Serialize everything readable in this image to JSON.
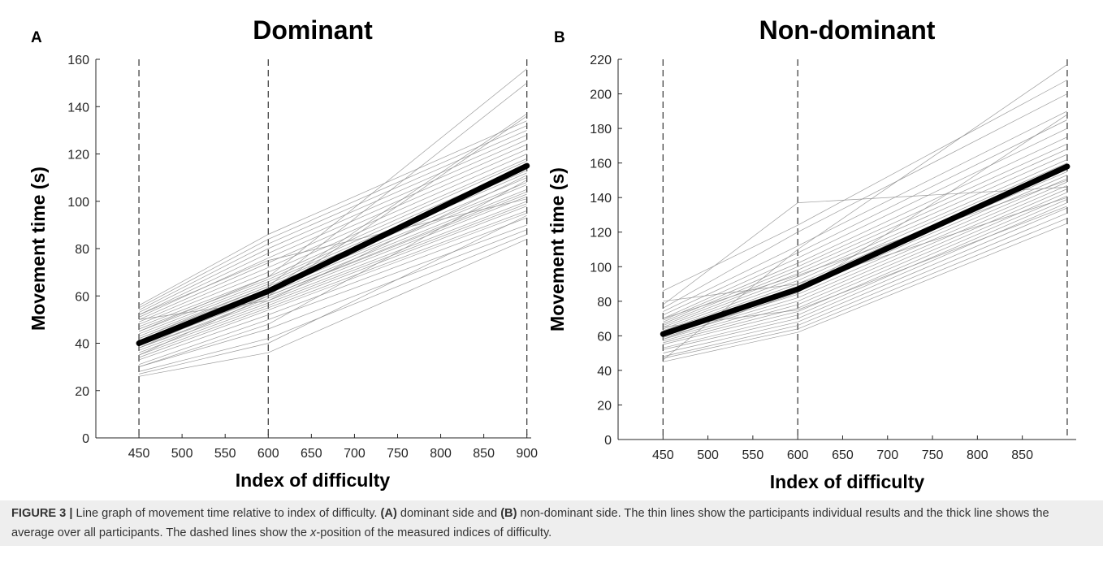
{
  "chart_data": [
    {
      "type": "line",
      "panel_label": "A",
      "title": "Dominant",
      "xlabel": "Index of difficulty",
      "ylabel": "Movement time (s)",
      "xlim": [
        400,
        905
      ],
      "ylim": [
        0,
        160
      ],
      "xticks": [
        450,
        500,
        550,
        600,
        650,
        700,
        750,
        800,
        850,
        900
      ],
      "yticks": [
        0,
        20,
        40,
        60,
        80,
        100,
        120,
        140,
        160
      ],
      "dashed_x": [
        450,
        600,
        900
      ],
      "x": [
        450,
        600,
        900
      ],
      "series": [
        {
          "role": "mean",
          "values": [
            40,
            62,
            115
          ]
        },
        {
          "values": [
            26,
            36,
            84
          ]
        },
        {
          "values": [
            28,
            42,
            86
          ]
        },
        {
          "values": [
            30,
            46,
            88
          ]
        },
        {
          "values": [
            31,
            50,
            90
          ]
        },
        {
          "values": [
            33,
            52,
            93
          ]
        },
        {
          "values": [
            34,
            54,
            95
          ]
        },
        {
          "values": [
            35,
            55,
            96
          ]
        },
        {
          "values": [
            36,
            56,
            98
          ]
        },
        {
          "values": [
            37,
            57,
            99
          ]
        },
        {
          "values": [
            38,
            58,
            100
          ]
        },
        {
          "values": [
            38,
            59,
            102
          ]
        },
        {
          "values": [
            39,
            60,
            103
          ]
        },
        {
          "values": [
            40,
            60,
            104
          ]
        },
        {
          "values": [
            40,
            61,
            105
          ]
        },
        {
          "values": [
            41,
            62,
            107
          ]
        },
        {
          "values": [
            42,
            63,
            108
          ]
        },
        {
          "values": [
            43,
            64,
            110
          ]
        },
        {
          "values": [
            44,
            65,
            112
          ]
        },
        {
          "values": [
            45,
            66,
            113
          ]
        },
        {
          "values": [
            46,
            67,
            115
          ]
        },
        {
          "values": [
            47,
            68,
            117
          ]
        },
        {
          "values": [
            48,
            70,
            118
          ]
        },
        {
          "values": [
            49,
            72,
            120
          ]
        },
        {
          "values": [
            50,
            74,
            122
          ]
        },
        {
          "values": [
            51,
            76,
            124
          ]
        },
        {
          "values": [
            52,
            78,
            126
          ]
        },
        {
          "values": [
            53,
            80,
            128
          ]
        },
        {
          "values": [
            54,
            82,
            130
          ]
        },
        {
          "values": [
            55,
            84,
            132
          ]
        },
        {
          "values": [
            56,
            86,
            134
          ]
        },
        {
          "values": [
            35,
            60,
            136
          ]
        },
        {
          "values": [
            38,
            62,
            137
          ]
        },
        {
          "values": [
            42,
            64,
            150
          ]
        },
        {
          "values": [
            45,
            68,
            156
          ]
        },
        {
          "values": [
            30,
            48,
            109
          ]
        },
        {
          "values": [
            50,
            58,
            111
          ]
        },
        {
          "values": [
            52,
            75,
            101
          ]
        },
        {
          "values": [
            27,
            40,
            94
          ]
        }
      ]
    },
    {
      "type": "line",
      "panel_label": "B",
      "title": "Non-dominant",
      "xlabel": "Index of difficulty",
      "ylabel": "Movement time (s)",
      "xlim": [
        400,
        910
      ],
      "ylim": [
        0,
        220
      ],
      "xticks": [
        450,
        500,
        550,
        600,
        650,
        700,
        750,
        800,
        850
      ],
      "yticks": [
        0,
        20,
        40,
        60,
        80,
        100,
        120,
        140,
        160,
        180,
        200,
        220
      ],
      "dashed_x": [
        450,
        600,
        900
      ],
      "x": [
        450,
        600,
        900
      ],
      "series": [
        {
          "role": "mean",
          "values": [
            61,
            87,
            158
          ]
        },
        {
          "values": [
            45,
            62,
            125
          ]
        },
        {
          "values": [
            47,
            64,
            128
          ]
        },
        {
          "values": [
            48,
            66,
            131
          ]
        },
        {
          "values": [
            50,
            68,
            134
          ]
        },
        {
          "values": [
            52,
            70,
            137
          ]
        },
        {
          "values": [
            53,
            72,
            139
          ]
        },
        {
          "values": [
            55,
            74,
            141
          ]
        },
        {
          "values": [
            56,
            76,
            143
          ]
        },
        {
          "values": [
            57,
            78,
            145
          ]
        },
        {
          "values": [
            58,
            80,
            147
          ]
        },
        {
          "values": [
            59,
            82,
            149
          ]
        },
        {
          "values": [
            60,
            84,
            151
          ]
        },
        {
          "values": [
            61,
            86,
            153
          ]
        },
        {
          "values": [
            62,
            88,
            155
          ]
        },
        {
          "values": [
            63,
            90,
            158
          ]
        },
        {
          "values": [
            64,
            92,
            160
          ]
        },
        {
          "values": [
            65,
            94,
            162
          ]
        },
        {
          "values": [
            66,
            96,
            165
          ]
        },
        {
          "values": [
            67,
            98,
            168
          ]
        },
        {
          "values": [
            68,
            100,
            171
          ]
        },
        {
          "values": [
            69,
            102,
            175
          ]
        },
        {
          "values": [
            70,
            105,
            180
          ]
        },
        {
          "values": [
            72,
            108,
            185
          ]
        },
        {
          "values": [
            74,
            112,
            190
          ]
        },
        {
          "values": [
            76,
            120,
            200
          ]
        },
        {
          "values": [
            78,
            137,
            146
          ]
        },
        {
          "values": [
            86,
            124,
            208
          ]
        },
        {
          "values": [
            46,
            110,
            217
          ]
        },
        {
          "values": [
            80,
            90,
            140
          ]
        },
        {
          "values": [
            65,
            75,
            135
          ]
        },
        {
          "values": [
            70,
            95,
            150
          ]
        },
        {
          "values": [
            58,
            85,
            188
          ]
        }
      ]
    }
  ],
  "caption": {
    "figure_label": "FIGURE 3 |",
    "text_1": " Line graph of movement time relative to index of difficulty. ",
    "label_a": "(A)",
    "text_2": " dominant side and ",
    "label_b": "(B)",
    "text_3": " non-dominant side. The thin lines show the participants individual results and the thick line shows the average over all participants. The dashed lines show the ",
    "italic_x": "x",
    "text_4": "-position of the measured indices of difficulty."
  }
}
